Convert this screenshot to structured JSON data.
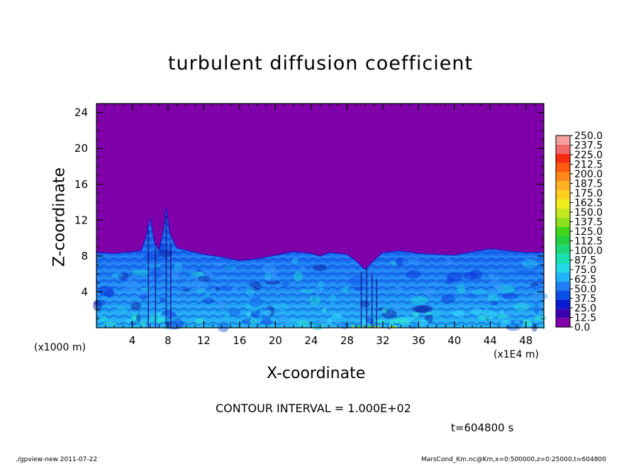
{
  "chart_data": {
    "type": "heatmap",
    "title": "turbulent diffusion coefficient",
    "xlabel": "X-coordinate",
    "ylabel": "Z-coordinate",
    "x_offset_label": "(x1000 m)",
    "x_unit_label": "(x1E4 m)",
    "xlim": [
      0,
      50
    ],
    "ylim": [
      0,
      25
    ],
    "x_ticks": [
      4,
      8,
      12,
      16,
      20,
      24,
      28,
      32,
      36,
      40,
      44,
      48
    ],
    "y_ticks": [
      4,
      8,
      12,
      16,
      20,
      24
    ],
    "colorbar_levels": [
      "0.0",
      "12.5",
      "25.0",
      "37.5",
      "50.0",
      "62.5",
      "75.0",
      "87.5",
      "100.0",
      "112.5",
      "125.0",
      "137.5",
      "150.0",
      "162.5",
      "175.0",
      "187.5",
      "200.0",
      "212.5",
      "225.0",
      "237.5",
      "250.0"
    ],
    "colorbar_colors": [
      "#7f00a8",
      "#3b00b0",
      "#0a1ad2",
      "#0b4fe6",
      "#1e7ff5",
      "#1fb2f7",
      "#20d8e6",
      "#18e0b0",
      "#1cd67a",
      "#20d040",
      "#40d61a",
      "#8ee01a",
      "#c4e81c",
      "#eeec1a",
      "#ffd020",
      "#ffb020",
      "#ff8818",
      "#ff5a10",
      "#f82a10",
      "#f06a6a",
      "#f4a0a0"
    ],
    "mixed_layer_top_profile": [
      [
        0,
        8.4
      ],
      [
        2,
        8.3
      ],
      [
        4,
        8.5
      ],
      [
        5,
        8.6
      ],
      [
        5.5,
        10
      ],
      [
        6,
        12.3
      ],
      [
        6.5,
        9.5
      ],
      [
        7,
        8.6
      ],
      [
        7.5,
        11
      ],
      [
        7.8,
        13.4
      ],
      [
        8.2,
        10.5
      ],
      [
        9,
        8.9
      ],
      [
        12,
        8.2
      ],
      [
        14,
        7.9
      ],
      [
        16,
        7.5
      ],
      [
        18,
        7.7
      ],
      [
        20,
        8.1
      ],
      [
        22,
        8.5
      ],
      [
        24,
        8.3
      ],
      [
        25,
        8.0
      ],
      [
        26,
        8.4
      ],
      [
        28,
        8.2
      ],
      [
        29,
        7.5
      ],
      [
        30,
        6.5
      ],
      [
        31,
        7.5
      ],
      [
        32,
        8.4
      ],
      [
        34,
        8.6
      ],
      [
        36,
        8.3
      ],
      [
        38,
        8.2
      ],
      [
        40,
        8.1
      ],
      [
        42,
        8.5
      ],
      [
        44,
        8.8
      ],
      [
        46,
        8.6
      ],
      [
        48,
        8.4
      ],
      [
        50,
        8.4
      ]
    ],
    "plot_background_value": 0.0
  },
  "annotations": {
    "contour_interval": "CONTOUR INTERVAL = 1.000E+02",
    "time": "t=604800 s",
    "footer_left": "./gpview-new  2011-07-22",
    "footer_right": "MarsCond_Km.nc@Km,x=0:500000,z=0:25000,t=604800"
  }
}
